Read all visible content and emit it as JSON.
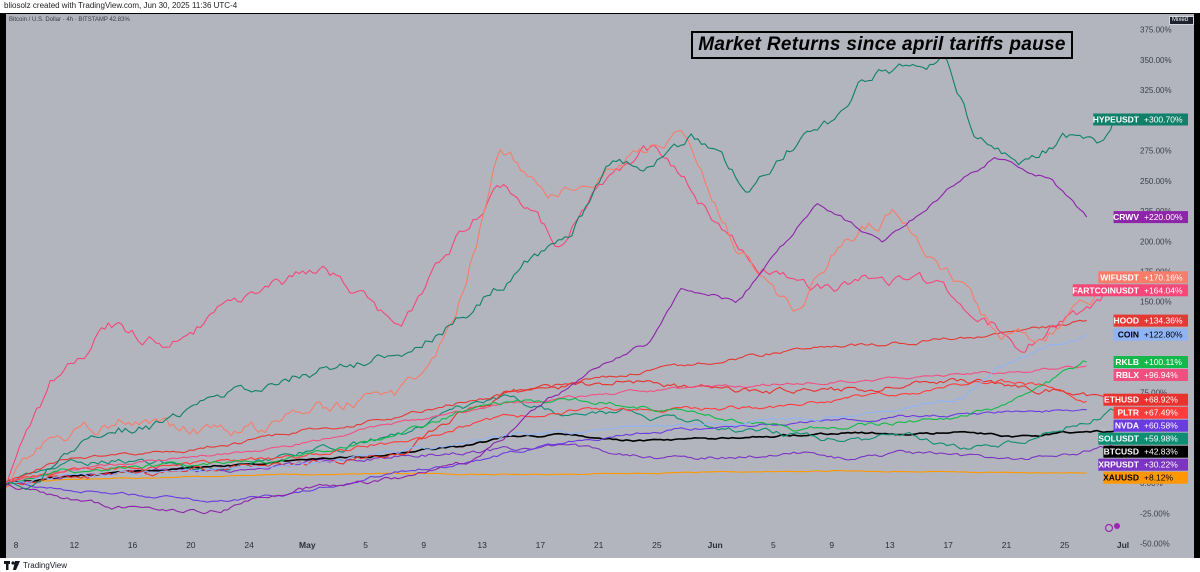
{
  "header": {
    "caption": "bliosolz created with TradingView.com, Jun 30, 2025 11:36 UTC-4"
  },
  "chart_header": {
    "symbol_line": "Bitcoin / U.S. Dollar · 4h · BITSTAMP  42.83%"
  },
  "scale_mode": "Mixed",
  "footer": {
    "brand": "TradingView"
  },
  "colors": {
    "background": "#b2b5be",
    "frame": "#000000"
  },
  "chart_data": {
    "type": "line",
    "title": "Market Returns since april tariffs pause",
    "x_ticks": [
      "8",
      "12",
      "16",
      "20",
      "24",
      "May",
      "5",
      "9",
      "13",
      "17",
      "21",
      "25",
      "Jun",
      "5",
      "9",
      "13",
      "17",
      "21",
      "25",
      "Jul"
    ],
    "y_ticks": [
      "375.00%",
      "350.00%",
      "325.00%",
      "300.00%",
      "275.00%",
      "250.00%",
      "225.00%",
      "200.00%",
      "175.00%",
      "150.00%",
      "125.00%",
      "100.00%",
      "75.00%",
      "50.00%",
      "25.00%",
      "0.00%",
      "-25.00%",
      "-50.00%"
    ],
    "ylim": [
      -62,
      388
    ],
    "series": [
      {
        "name": "HYPEUSDT",
        "label": "+300.70%",
        "color": "#11806a",
        "final": 300.7
      },
      {
        "name": "CRWV",
        "label": "+220.00%",
        "color": "#8e24aa",
        "final": 220.0
      },
      {
        "name": "WIFUSDT",
        "label": "+170.16%",
        "color": "#f77c6a",
        "final": 170.16
      },
      {
        "name": "FARTCOINUSDT",
        "label": "+164.04%",
        "color": "#f54778",
        "final": 164.04
      },
      {
        "name": "HOOD",
        "label": "+134.36%",
        "color": "#e53935",
        "final": 134.36
      },
      {
        "name": "COIN",
        "label": "+122.80%",
        "color": "#8fb3f5",
        "final": 122.8
      },
      {
        "name": "RKLB",
        "label": "+100.11%",
        "color": "#13b94b",
        "final": 100.11
      },
      {
        "name": "RBLX",
        "label": "+96.94%",
        "color": "#f05080",
        "final": 96.94
      },
      {
        "name": "ETHUSD",
        "label": "+68.92%",
        "color": "#e8322e",
        "final": 68.92
      },
      {
        "name": "PLTR",
        "label": "+67.49%",
        "color": "#ff3b3b",
        "final": 67.49
      },
      {
        "name": "NVDA",
        "label": "+60.58%",
        "color": "#6a3ce0",
        "final": 60.58
      },
      {
        "name": "SOLUSDT",
        "label": "+59.98%",
        "color": "#0f8e74",
        "final": 59.98
      },
      {
        "name": "BTCUSD",
        "label": "+42.83%",
        "color": "#000000",
        "final": 42.83
      },
      {
        "name": "XRPUSDT",
        "label": "+30.22%",
        "color": "#7b35c2",
        "final": 30.22
      },
      {
        "name": "XAUUSD",
        "label": "+8.12%",
        "color": "#ff9800",
        "final": 8.12
      }
    ],
    "grid": false,
    "legend": "right-axis value tags"
  }
}
